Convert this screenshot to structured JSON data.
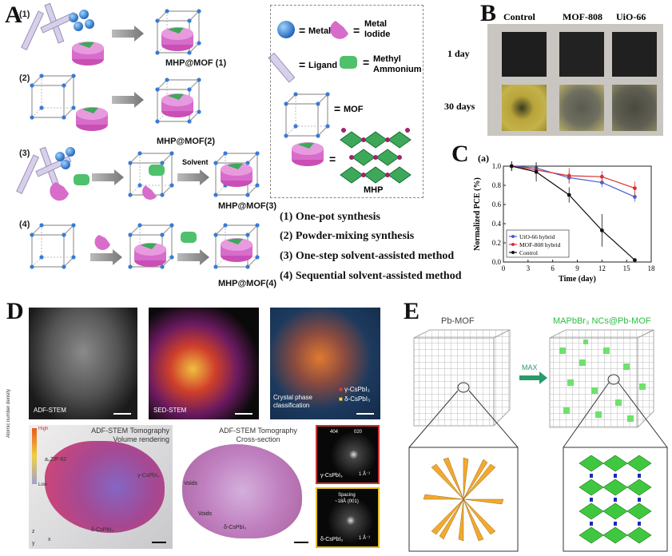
{
  "panels": {
    "A": "A",
    "B": "B",
    "C": "C",
    "D": "D",
    "E": "E"
  },
  "panelA": {
    "row_numbers": [
      "(1)",
      "(2)",
      "(3)",
      "(4)"
    ],
    "captions": {
      "r1": "MHP@MOF (1)",
      "r2": "MHP@MOF(2)",
      "r3": "MHP@MOF(3)",
      "r4": "MHP@MOF(4)"
    },
    "solvent": "Solvent",
    "legend": {
      "metal": "Metal",
      "metal_iodide_1": "Metal",
      "metal_iodide_2": "Iodide",
      "ligand": "Ligand",
      "methyl_1": "Methyl",
      "methyl_2": "Ammonium",
      "mof": "MOF",
      "mhp": "MHP",
      "eq": "="
    },
    "methods": [
      "(1) One-pot synthesis",
      "(2) Powder-mixing synthesis",
      "(3) One-step solvent-assisted method",
      "(4) Sequential solvent-assisted method"
    ]
  },
  "panelB": {
    "columns": [
      "Control",
      "MOF-808",
      "UiO-66"
    ],
    "rows": [
      "1 day",
      "30 days"
    ],
    "colors": {
      "bg": "#c9c6c1",
      "dark": "#1e1e1e",
      "yellow": "#b8a43a"
    }
  },
  "panelC": {
    "sub": "(a)"
  },
  "chart_data": {
    "type": "line",
    "xlabel": "Time (day)",
    "ylabel": "Normalized PCE (%)",
    "xlim": [
      0,
      18
    ],
    "ylim": [
      0,
      1.0
    ],
    "x_ticks": [
      0,
      3,
      6,
      9,
      12,
      15,
      18
    ],
    "y_ticks": [
      0.0,
      0.2,
      0.4,
      0.6,
      0.8,
      1.0
    ],
    "legend_position": "bottom-left",
    "series": [
      {
        "name": "UiO-66 hybrid",
        "color": "#4a5fc9",
        "x": [
          1,
          4,
          8,
          12,
          16
        ],
        "y": [
          1.0,
          0.98,
          0.88,
          0.83,
          0.68
        ],
        "err": [
          0.05,
          0.06,
          0.06,
          0.05,
          0.05
        ]
      },
      {
        "name": "MOF-808 hybrid",
        "color": "#d93030",
        "x": [
          1,
          4,
          8,
          12,
          16
        ],
        "y": [
          1.0,
          0.96,
          0.9,
          0.89,
          0.77
        ],
        "err": [
          0.05,
          0.08,
          0.08,
          0.06,
          0.07
        ]
      },
      {
        "name": "Control",
        "color": "#111111",
        "x": [
          1,
          4,
          8,
          12,
          16
        ],
        "y": [
          1.0,
          0.94,
          0.7,
          0.33,
          0.02
        ],
        "err": [
          0.05,
          0.1,
          0.08,
          0.17,
          0.02
        ]
      }
    ]
  },
  "panelD": {
    "top_labels": {
      "adf": "ADF-STEM",
      "sed": "SED-STEM",
      "crystal_1": "Crystal phase",
      "crystal_2": "classification",
      "gamma": "γ-CsPbI₃",
      "delta": "δ-CsPbI₃"
    },
    "tomo1": {
      "title1": "ADF-STEM Tomography",
      "title2": "Volume rendering",
      "high": "High",
      "low": "Low",
      "axis": "Atomic number density",
      "zif": "a₀ZIF-62",
      "gamma": "γ-CsPbI₃",
      "delta": "δ-CsPbI₃",
      "x": "x",
      "y": "y",
      "z": "z"
    },
    "tomo2": {
      "title1": "ADF-STEM Tomography",
      "title2": "Cross-section",
      "voids1": "Voids",
      "voids2": "Voids",
      "delta": "δ-CsPbI₃"
    },
    "diff1": {
      "a": "404",
      "b": "020",
      "label": "γ-CsPbI₃",
      "scale": "1 Å⁻¹"
    },
    "diff2": {
      "s1": "Spacing",
      "s2": "~18Å (001)",
      "label": "δ-CsPbI₃",
      "scale": "1 Å⁻¹"
    }
  },
  "panelE": {
    "left": "Pb-MOF",
    "right": "MAPbBr₃ NCs@Pb-MOF",
    "arrow": "MAX"
  }
}
